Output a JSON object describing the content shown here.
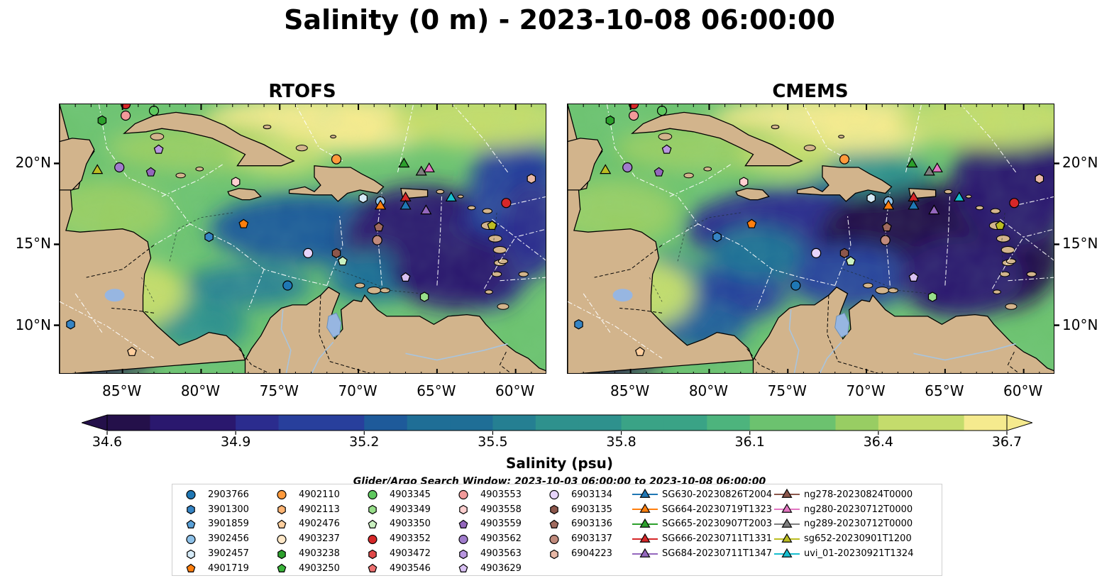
{
  "title": "Salinity (0 m) - 2023-10-08 06:00:00",
  "panels": [
    {
      "title": "RTOFS"
    },
    {
      "title": "CMEMS"
    }
  ],
  "axes": {
    "lon_labels": [
      "85°W",
      "80°W",
      "75°W",
      "70°W",
      "65°W",
      "60°W"
    ],
    "lon_values": [
      -85,
      -80,
      -75,
      -70,
      -65,
      -60
    ],
    "lat_labels": [
      "20°N",
      "15°N",
      "10°N"
    ],
    "lat_values": [
      20,
      15,
      10
    ],
    "lon_range": [
      -89,
      -58
    ],
    "lat_range": [
      7,
      23.7
    ]
  },
  "colorbar": {
    "label": "Salinity (psu)",
    "ticks": [
      "34.6",
      "34.9",
      "35.2",
      "35.5",
      "35.8",
      "36.1",
      "36.4",
      "36.7"
    ],
    "range": [
      34.6,
      36.7
    ],
    "colormap": [
      "#24104a",
      "#2a186e",
      "#2b2c8e",
      "#283f9c",
      "#1e5a9a",
      "#1f6e96",
      "#257f92",
      "#2e918d",
      "#3aa386",
      "#4db47d",
      "#6cc26f",
      "#98cd63",
      "#c4dc6c",
      "#f5ea8e"
    ]
  },
  "search_window": "Glider/Argo Search Window: 2023-10-03 06:00:00 to 2023-10-08 06:00:00",
  "colors": {
    "land": "#d2b48c",
    "lakes": "#97b6e1",
    "rivers": "#a9c4dd",
    "coast": "#000000"
  },
  "legend": {
    "columns": [
      [
        {
          "label": "2903766",
          "marker": "circle",
          "color": "#1f77b4"
        },
        {
          "label": "3901300",
          "marker": "hexagon",
          "color": "#3584c4"
        },
        {
          "label": "3901859",
          "marker": "pentagon",
          "color": "#5aa1d8"
        },
        {
          "label": "3902456",
          "marker": "circle",
          "color": "#8ec1e8"
        },
        {
          "label": "3902457",
          "marker": "hexagon",
          "color": "#d6ebf8"
        },
        {
          "label": "4901719",
          "marker": "pentagon",
          "color": "#ff7f0e"
        }
      ],
      [
        {
          "label": "4902110",
          "marker": "circle",
          "color": "#ff9a3c"
        },
        {
          "label": "4902113",
          "marker": "hexagon",
          "color": "#ffb574"
        },
        {
          "label": "4902476",
          "marker": "pentagon",
          "color": "#ffcf9e"
        },
        {
          "label": "4903237",
          "marker": "circle",
          "color": "#ffe8c8"
        },
        {
          "label": "4903238",
          "marker": "hexagon",
          "color": "#2ca02c"
        },
        {
          "label": "4903250",
          "marker": "pentagon",
          "color": "#3ab53a"
        }
      ],
      [
        {
          "label": "4903345",
          "marker": "circle",
          "color": "#5ec85e"
        },
        {
          "label": "4903349",
          "marker": "hexagon",
          "color": "#98df8a"
        },
        {
          "label": "4903350",
          "marker": "pentagon",
          "color": "#c9f0c0"
        },
        {
          "label": "4903352",
          "marker": "circle",
          "color": "#d62728"
        },
        {
          "label": "4903472",
          "marker": "hexagon",
          "color": "#e04848"
        },
        {
          "label": "4903546",
          "marker": "pentagon",
          "color": "#ec7070"
        }
      ],
      [
        {
          "label": "4903553",
          "marker": "circle",
          "color": "#f29a9a"
        },
        {
          "label": "4903558",
          "marker": "hexagon",
          "color": "#ffd0d0"
        },
        {
          "label": "4903559",
          "marker": "pentagon",
          "color": "#9467bd"
        },
        {
          "label": "4903562",
          "marker": "circle",
          "color": "#a07ccc"
        },
        {
          "label": "4903563",
          "marker": "hexagon",
          "color": "#b996e0"
        },
        {
          "label": "4903629",
          "marker": "pentagon",
          "color": "#d8c0f2"
        }
      ],
      [
        {
          "label": "6903134",
          "marker": "circle",
          "color": "#e7d4fb"
        },
        {
          "label": "6903135",
          "marker": "hexagon",
          "color": "#8c564b"
        },
        {
          "label": "6903136",
          "marker": "pentagon",
          "color": "#a06a5e"
        },
        {
          "label": "6903137",
          "marker": "circle",
          "color": "#c08a7c"
        },
        {
          "label": "6904223",
          "marker": "hexagon",
          "color": "#e8b8a6"
        }
      ],
      [
        {
          "label": "SG630-20230826T2004",
          "marker": "triangle",
          "color": "#1f77b4"
        },
        {
          "label": "SG664-20230719T1323",
          "marker": "triangle",
          "color": "#ff7f0e"
        },
        {
          "label": "SG665-20230907T2003",
          "marker": "triangle",
          "color": "#2ca02c"
        },
        {
          "label": "SG666-20230711T1331",
          "marker": "triangle",
          "color": "#d62728"
        },
        {
          "label": "SG684-20230711T1347",
          "marker": "triangle",
          "color": "#9467bd"
        }
      ],
      [
        {
          "label": "ng278-20230824T0000",
          "marker": "triangle",
          "color": "#8c564b"
        },
        {
          "label": "ng280-20230712T0000",
          "marker": "triangle",
          "color": "#e377c2"
        },
        {
          "label": "ng289-20230712T0000",
          "marker": "triangle",
          "color": "#7f7f7f"
        },
        {
          "label": "sg652-20230901T1200",
          "marker": "triangle",
          "color": "#bcbd22"
        },
        {
          "label": "uvi_01-20230921T1324",
          "marker": "triangle",
          "color": "#17becf"
        }
      ]
    ]
  },
  "platforms": [
    {
      "lon": -84.8,
      "lat": 23.0,
      "marker": "circle",
      "color": "#f29a9a"
    },
    {
      "lon": -83.0,
      "lat": 23.3,
      "marker": "circle",
      "color": "#5ec85e"
    },
    {
      "lon": -86.3,
      "lat": 22.7,
      "marker": "hexagon",
      "color": "#2ca02c"
    },
    {
      "lon": -84.8,
      "lat": 23.7,
      "marker": "circle",
      "color": "#d62728"
    },
    {
      "lon": -82.7,
      "lat": 20.9,
      "marker": "pentagon",
      "color": "#b996e0"
    },
    {
      "lon": -86.6,
      "lat": 19.6,
      "marker": "triangle",
      "color": "#bcbd22"
    },
    {
      "lon": -85.2,
      "lat": 19.8,
      "marker": "circle",
      "color": "#a07ccc"
    },
    {
      "lon": -83.2,
      "lat": 19.5,
      "marker": "pentagon",
      "color": "#9467bd"
    },
    {
      "lon": -77.8,
      "lat": 18.9,
      "marker": "hexagon",
      "color": "#ffd0d0"
    },
    {
      "lon": -77.3,
      "lat": 16.3,
      "marker": "pentagon",
      "color": "#ff7f0e"
    },
    {
      "lon": -79.5,
      "lat": 15.5,
      "marker": "hexagon",
      "color": "#3584c4"
    },
    {
      "lon": -73.2,
      "lat": 14.5,
      "marker": "circle",
      "color": "#e7d4fb"
    },
    {
      "lon": -74.5,
      "lat": 12.5,
      "marker": "circle",
      "color": "#1f77b4"
    },
    {
      "lon": -71.4,
      "lat": 14.5,
      "marker": "hexagon",
      "color": "#8c564b"
    },
    {
      "lon": -71.0,
      "lat": 14.0,
      "marker": "pentagon",
      "color": "#c9f0c0"
    },
    {
      "lon": -71.4,
      "lat": 20.3,
      "marker": "circle",
      "color": "#ff9a3c"
    },
    {
      "lon": -69.7,
      "lat": 17.9,
      "marker": "hexagon",
      "color": "#d6ebf8"
    },
    {
      "lon": -68.6,
      "lat": 17.7,
      "marker": "circle",
      "color": "#8ec1e8"
    },
    {
      "lon": -68.6,
      "lat": 17.4,
      "marker": "triangle",
      "color": "#ff7f0e"
    },
    {
      "lon": -68.7,
      "lat": 16.1,
      "marker": "pentagon",
      "color": "#a06a5e"
    },
    {
      "lon": -68.8,
      "lat": 15.3,
      "marker": "circle",
      "color": "#c08a7c"
    },
    {
      "lon": -67.1,
      "lat": 20.0,
      "marker": "triangle",
      "color": "#2ca02c"
    },
    {
      "lon": -66.0,
      "lat": 19.5,
      "marker": "triangle",
      "color": "#7f7f7f"
    },
    {
      "lon": -65.5,
      "lat": 19.7,
      "marker": "triangle",
      "color": "#e377c2"
    },
    {
      "lon": -67.0,
      "lat": 17.9,
      "marker": "triangle",
      "color": "#d62728"
    },
    {
      "lon": -67.0,
      "lat": 17.4,
      "marker": "triangle",
      "color": "#1f77b4"
    },
    {
      "lon": -65.7,
      "lat": 17.1,
      "marker": "triangle",
      "color": "#9467bd"
    },
    {
      "lon": -64.1,
      "lat": 17.9,
      "marker": "triangle",
      "color": "#17becf"
    },
    {
      "lon": -67.0,
      "lat": 13.0,
      "marker": "pentagon",
      "color": "#d8c0f2"
    },
    {
      "lon": -65.8,
      "lat": 11.8,
      "marker": "hexagon",
      "color": "#98df8a"
    },
    {
      "lon": -60.6,
      "lat": 17.6,
      "marker": "circle",
      "color": "#d62728"
    },
    {
      "lon": -59.0,
      "lat": 19.1,
      "marker": "hexagon",
      "color": "#e8b8a6"
    },
    {
      "lon": -61.5,
      "lat": 16.2,
      "marker": "pentagon",
      "color": "#bcbd22"
    },
    {
      "lon": -88.3,
      "lat": 10.1,
      "marker": "hexagon",
      "color": "#3584c4"
    },
    {
      "lon": -84.4,
      "lat": 8.4,
      "marker": "pentagon",
      "color": "#ffcf9e"
    }
  ]
}
